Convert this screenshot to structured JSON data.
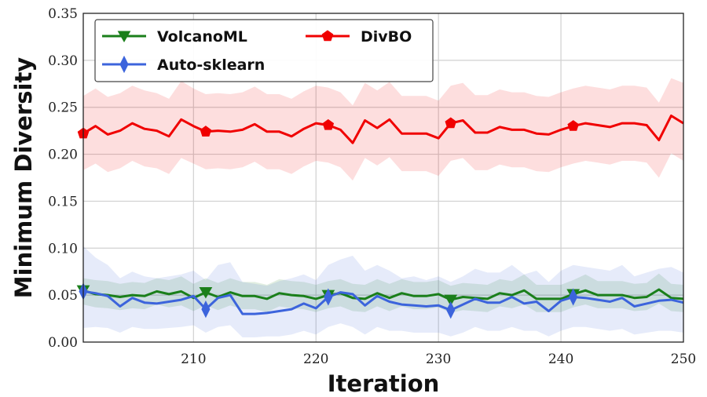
{
  "chart_data": {
    "type": "line",
    "xlabel": "Iteration",
    "ylabel": "Minimum Diversity",
    "xlim": [
      201,
      250
    ],
    "ylim": [
      0.0,
      0.35
    ],
    "xticks": [
      210,
      220,
      230,
      240,
      250
    ],
    "xtick_labels": [
      "210",
      "220",
      "230",
      "240",
      "250"
    ],
    "yticks": [
      0.0,
      0.05,
      0.1,
      0.15,
      0.2,
      0.25,
      0.3,
      0.35
    ],
    "ytick_labels": [
      "0.00",
      "0.05",
      "0.10",
      "0.15",
      "0.20",
      "0.25",
      "0.30",
      "0.35"
    ],
    "grid": true,
    "legend_position": "top-left",
    "x": [
      201,
      202,
      203,
      204,
      205,
      206,
      207,
      208,
      209,
      210,
      211,
      212,
      213,
      214,
      215,
      216,
      217,
      218,
      219,
      220,
      221,
      222,
      223,
      224,
      225,
      226,
      227,
      228,
      229,
      230,
      231,
      232,
      233,
      234,
      235,
      236,
      237,
      238,
      239,
      240,
      241,
      242,
      243,
      244,
      245,
      246,
      247,
      248,
      249,
      250
    ],
    "series": [
      {
        "name": "VolcanoML",
        "color": "#1a7f1a",
        "marker": "triangle-down",
        "values": [
          0.055,
          0.051,
          0.05,
          0.048,
          0.05,
          0.049,
          0.054,
          0.051,
          0.054,
          0.047,
          0.053,
          0.048,
          0.053,
          0.049,
          0.049,
          0.046,
          0.052,
          0.05,
          0.049,
          0.046,
          0.05,
          0.052,
          0.047,
          0.046,
          0.052,
          0.047,
          0.052,
          0.049,
          0.049,
          0.051,
          0.045,
          0.048,
          0.047,
          0.046,
          0.052,
          0.05,
          0.055,
          0.046,
          0.046,
          0.046,
          0.051,
          0.055,
          0.05,
          0.05,
          0.05,
          0.047,
          0.048,
          0.056,
          0.047,
          0.046
        ],
        "upper": [
          0.068,
          0.066,
          0.065,
          0.062,
          0.064,
          0.063,
          0.068,
          0.066,
          0.07,
          0.062,
          0.068,
          0.063,
          0.068,
          0.064,
          0.064,
          0.061,
          0.067,
          0.065,
          0.064,
          0.061,
          0.065,
          0.067,
          0.062,
          0.061,
          0.067,
          0.062,
          0.067,
          0.064,
          0.064,
          0.066,
          0.06,
          0.063,
          0.062,
          0.061,
          0.067,
          0.065,
          0.072,
          0.061,
          0.061,
          0.061,
          0.066,
          0.072,
          0.065,
          0.065,
          0.065,
          0.062,
          0.063,
          0.073,
          0.062,
          0.061
        ],
        "lower": [
          0.04,
          0.037,
          0.036,
          0.034,
          0.036,
          0.035,
          0.04,
          0.037,
          0.039,
          0.033,
          0.039,
          0.034,
          0.039,
          0.035,
          0.035,
          0.032,
          0.038,
          0.036,
          0.035,
          0.032,
          0.036,
          0.038,
          0.033,
          0.032,
          0.038,
          0.033,
          0.038,
          0.035,
          0.035,
          0.037,
          0.031,
          0.034,
          0.033,
          0.032,
          0.038,
          0.036,
          0.04,
          0.032,
          0.032,
          0.032,
          0.037,
          0.04,
          0.036,
          0.036,
          0.036,
          0.033,
          0.034,
          0.041,
          0.033,
          0.032
        ]
      },
      {
        "name": "DivBO",
        "color": "#f00000",
        "marker": "pentagon",
        "values": [
          0.222,
          0.23,
          0.221,
          0.225,
          0.233,
          0.227,
          0.225,
          0.219,
          0.237,
          0.23,
          0.224,
          0.225,
          0.224,
          0.226,
          0.232,
          0.224,
          0.224,
          0.219,
          0.227,
          0.233,
          0.231,
          0.226,
          0.212,
          0.236,
          0.228,
          0.237,
          0.222,
          0.222,
          0.222,
          0.217,
          0.233,
          0.236,
          0.223,
          0.223,
          0.229,
          0.226,
          0.226,
          0.222,
          0.221,
          0.226,
          0.23,
          0.233,
          0.231,
          0.229,
          0.233,
          0.233,
          0.231,
          0.215,
          0.241,
          0.233
        ],
        "upper": [
          0.262,
          0.27,
          0.261,
          0.265,
          0.273,
          0.268,
          0.265,
          0.259,
          0.278,
          0.27,
          0.264,
          0.265,
          0.264,
          0.266,
          0.272,
          0.264,
          0.264,
          0.259,
          0.267,
          0.273,
          0.271,
          0.266,
          0.252,
          0.276,
          0.268,
          0.277,
          0.262,
          0.262,
          0.262,
          0.257,
          0.273,
          0.276,
          0.263,
          0.263,
          0.269,
          0.266,
          0.266,
          0.262,
          0.261,
          0.266,
          0.27,
          0.273,
          0.271,
          0.269,
          0.273,
          0.273,
          0.271,
          0.255,
          0.281,
          0.276
        ],
        "lower": [
          0.183,
          0.19,
          0.181,
          0.185,
          0.193,
          0.187,
          0.185,
          0.179,
          0.196,
          0.19,
          0.184,
          0.185,
          0.184,
          0.186,
          0.192,
          0.184,
          0.184,
          0.179,
          0.187,
          0.193,
          0.191,
          0.186,
          0.172,
          0.196,
          0.188,
          0.197,
          0.182,
          0.182,
          0.182,
          0.177,
          0.193,
          0.196,
          0.183,
          0.183,
          0.189,
          0.186,
          0.186,
          0.182,
          0.181,
          0.186,
          0.19,
          0.193,
          0.191,
          0.189,
          0.193,
          0.193,
          0.191,
          0.175,
          0.201,
          0.193
        ]
      },
      {
        "name": "Auto-sklearn",
        "color": "#3c64dc",
        "marker": "thin-diamond",
        "values": [
          0.054,
          0.052,
          0.049,
          0.038,
          0.047,
          0.042,
          0.041,
          0.043,
          0.045,
          0.049,
          0.035,
          0.047,
          0.05,
          0.03,
          0.03,
          0.031,
          0.033,
          0.035,
          0.041,
          0.036,
          0.048,
          0.053,
          0.051,
          0.039,
          0.049,
          0.043,
          0.04,
          0.039,
          0.038,
          0.039,
          0.034,
          0.04,
          0.046,
          0.042,
          0.042,
          0.048,
          0.041,
          0.043,
          0.033,
          0.044,
          0.048,
          0.047,
          0.045,
          0.043,
          0.047,
          0.038,
          0.041,
          0.044,
          0.045,
          0.042
        ],
        "upper": [
          0.102,
          0.09,
          0.082,
          0.068,
          0.075,
          0.07,
          0.068,
          0.07,
          0.072,
          0.076,
          0.066,
          0.082,
          0.085,
          0.064,
          0.062,
          0.06,
          0.065,
          0.068,
          0.072,
          0.066,
          0.082,
          0.088,
          0.092,
          0.076,
          0.082,
          0.076,
          0.068,
          0.07,
          0.066,
          0.07,
          0.064,
          0.07,
          0.078,
          0.074,
          0.074,
          0.082,
          0.072,
          0.076,
          0.064,
          0.076,
          0.082,
          0.08,
          0.078,
          0.076,
          0.082,
          0.07,
          0.074,
          0.078,
          0.08,
          0.074
        ],
        "lower": [
          0.015,
          0.016,
          0.015,
          0.01,
          0.016,
          0.014,
          0.014,
          0.015,
          0.016,
          0.018,
          0.01,
          0.016,
          0.018,
          0.005,
          0.005,
          0.006,
          0.006,
          0.008,
          0.012,
          0.008,
          0.016,
          0.02,
          0.016,
          0.008,
          0.016,
          0.012,
          0.012,
          0.01,
          0.01,
          0.01,
          0.006,
          0.01,
          0.016,
          0.012,
          0.012,
          0.016,
          0.012,
          0.012,
          0.006,
          0.012,
          0.016,
          0.016,
          0.014,
          0.012,
          0.014,
          0.008,
          0.01,
          0.012,
          0.012,
          0.01
        ]
      }
    ],
    "marker_x": [
      201,
      211,
      221,
      231,
      241
    ]
  }
}
